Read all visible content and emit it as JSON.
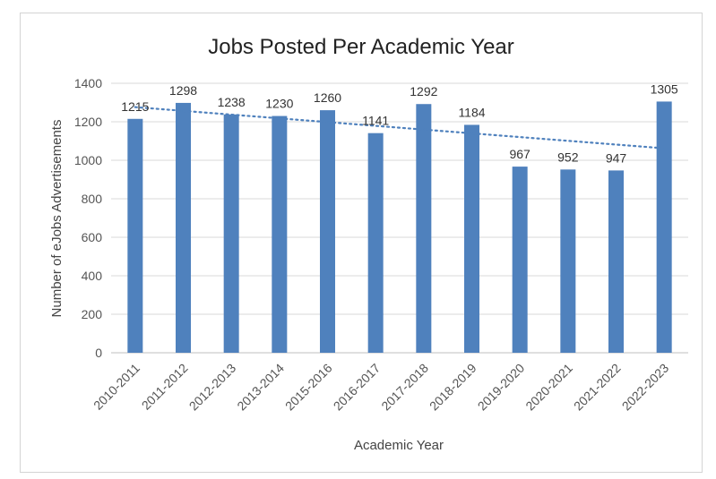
{
  "chart_data": {
    "type": "bar",
    "title": "Jobs Posted Per Academic Year",
    "xlabel": "Academic Year",
    "ylabel": "Number of eJobs Advertisements",
    "categories": [
      "2010-2011",
      "2011-2012",
      "2012-2013",
      "2013-2014",
      "2015-2016",
      "2016-2017",
      "2017-2018",
      "2018-2019",
      "2019-2020",
      "2020-2021",
      "2021-2022",
      "2022-2023"
    ],
    "values": [
      1215,
      1298,
      1238,
      1230,
      1260,
      1141,
      1292,
      1184,
      967,
      952,
      947,
      1305
    ],
    "ylim": [
      0,
      1400
    ],
    "yticks": [
      "0",
      "200",
      "400",
      "600",
      "800",
      "1000",
      "1200",
      "1400"
    ],
    "grid": true,
    "trendline": {
      "type": "linear",
      "style": "dotted"
    },
    "colors": {
      "bar": "#4f81bd",
      "trend": "#4f81bd"
    }
  }
}
